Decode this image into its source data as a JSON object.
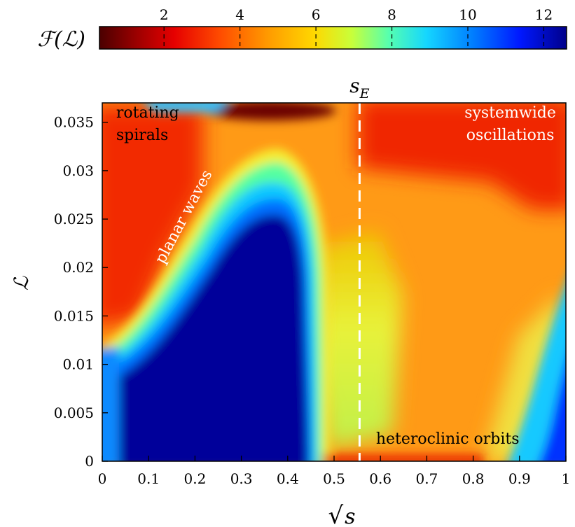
{
  "chart_data": {
    "type": "heatmap",
    "title": "",
    "xlabel": "√s",
    "ylabel": "ℒ",
    "xlim": [
      0,
      1
    ],
    "ylim": [
      0,
      0.037
    ],
    "x_ticks": [
      0,
      0.1,
      0.2,
      0.3,
      0.4,
      0.5,
      0.6,
      0.7,
      0.8,
      0.9,
      1
    ],
    "x_tick_labels": [
      "0",
      "0.1",
      "0.2",
      "0.3",
      "0.4",
      "0.5",
      "0.6",
      "0.7",
      "0.8",
      "0.9",
      "1"
    ],
    "y_ticks": [
      0,
      0.005,
      0.01,
      0.015,
      0.02,
      0.025,
      0.03,
      0.035
    ],
    "y_tick_labels": [
      "0",
      "0.005",
      "0.01",
      "0.015",
      "0.02",
      "0.025",
      "0.03",
      "0.035"
    ],
    "colorbar": {
      "label": "ℱ(ℒ)",
      "range": [
        0.3,
        12.6
      ],
      "ticks": [
        2,
        4,
        6,
        8,
        10,
        12
      ],
      "tick_labels": [
        "2",
        "4",
        "6",
        "8",
        "10",
        "12"
      ],
      "colormap": "jet"
    },
    "vline": {
      "x": 0.555,
      "label": "s",
      "label_subscript": "E",
      "style": "dashed",
      "color": "#ffffff"
    },
    "annotations": [
      {
        "lines": [
          "rotating",
          "spirals"
        ],
        "x": 0.03,
        "y": 0.0355,
        "color": "#000000",
        "rotation": 0
      },
      {
        "lines": [
          "planar waves"
        ],
        "x": 0.185,
        "y": 0.025,
        "color": "#ffffff",
        "rotation": -62
      },
      {
        "lines": [
          "systemwide",
          "oscillations"
        ],
        "x": 0.88,
        "y": 0.0355,
        "color": "#ffffff",
        "rotation": 0
      },
      {
        "lines": [
          "heteroclinic orbits"
        ],
        "x": 0.745,
        "y": 0.0018,
        "color": "#000000",
        "rotation": 0
      }
    ],
    "region_values": [
      {
        "region": "rotating spirals (upper left)",
        "value": 2.5
      },
      {
        "region": "planar waves band",
        "value": 2.0
      },
      {
        "region": "central dome (low ℒ, √s 0.1–0.45)",
        "value": 12.0
      },
      {
        "region": "top strip √s 0.28–0.45",
        "value": 0.5
      },
      {
        "region": "systemwide oscillations (√s > 0.55, high ℒ)",
        "value": 2.3
      },
      {
        "region": "mid-right field",
        "value": 3.8
      },
      {
        "region": "bottom-right corner (√s > 0.9, low ℒ)",
        "value": 12.0
      }
    ],
    "grid": false
  }
}
